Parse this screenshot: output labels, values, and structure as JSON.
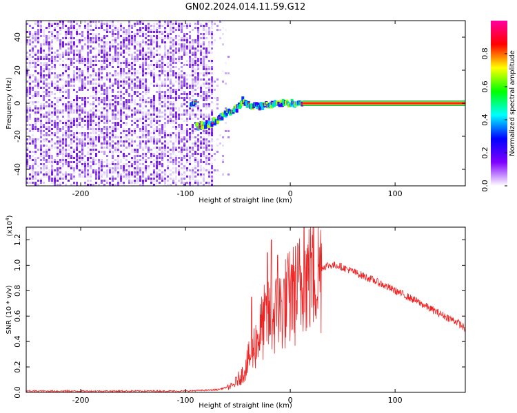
{
  "title": "GN02.2024.014.11.59.G12",
  "chart_data": [
    {
      "type": "heatmap",
      "title": "GN02.2024.014.11.59.G12",
      "xlabel": "Height of straight line (km)",
      "ylabel": "Frequency (Hz)",
      "xlim": [
        -252,
        167
      ],
      "ylim": [
        -50,
        50
      ],
      "x_ticks": [
        -200,
        -100,
        0,
        100
      ],
      "x_tick_labels": [
        "-200",
        "-100",
        "0",
        "100"
      ],
      "y_ticks": [
        -40,
        -20,
        0,
        20,
        40
      ],
      "y_tick_labels": [
        "-40",
        "-20",
        "0",
        "20",
        "40"
      ],
      "colorbar": {
        "label": "Normalized spectral amplitude",
        "range": [
          0,
          1
        ],
        "ticks": [
          0.0,
          0.2,
          0.4,
          0.6,
          0.8
        ],
        "tick_labels": [
          "0.0",
          "0.2",
          "0.4",
          "0.6",
          "0.8"
        ],
        "colors": [
          "#ffffff",
          "#7f00ff",
          "#0000ff",
          "#00ffff",
          "#00ff00",
          "#ffff00",
          "#ff0000",
          "#ff00a0"
        ]
      },
      "features": {
        "noise_region_x": [
          -252,
          -75
        ],
        "signal_track": [
          {
            "x": -90,
            "y": -14
          },
          {
            "x": -75,
            "y": -12
          },
          {
            "x": -70,
            "y": -10
          },
          {
            "x": -60,
            "y": -6
          },
          {
            "x": -50,
            "y": -3
          },
          {
            "x": -45,
            "y": 2
          },
          {
            "x": -40,
            "y": -1
          },
          {
            "x": -30,
            "y": -2
          },
          {
            "x": -20,
            "y": -1
          },
          {
            "x": -10,
            "y": 0
          },
          {
            "x": 0,
            "y": 0
          },
          {
            "x": 10,
            "y": 0
          },
          {
            "x": 167,
            "y": 0
          }
        ],
        "steady_line_start_x": 12,
        "grid": false
      }
    },
    {
      "type": "line",
      "xlabel": "Height of straight line (km)",
      "ylabel": "SNR (10 * v/v)",
      "y_scale_note": "(x10",
      "y_scale_exponent": "4",
      "xlim": [
        -252,
        167
      ],
      "ylim": [
        0,
        1.3
      ],
      "x_ticks": [
        -200,
        -100,
        0,
        100
      ],
      "x_tick_labels": [
        "-200",
        "-100",
        "0",
        "100"
      ],
      "y_ticks": [
        0.0,
        0.2,
        0.4,
        0.6,
        0.8,
        1.0,
        1.2
      ],
      "y_tick_labels": [
        "0.0",
        "0.2",
        "0.4",
        "0.6",
        "0.8",
        "1.0",
        "1.2"
      ],
      "grid": false,
      "series": [
        {
          "color": "#ee2222",
          "x": [
            -252,
            -200,
            -150,
            -100,
            -70,
            -55,
            -45,
            -35,
            -25,
            -15,
            -5,
            5,
            15,
            25,
            35,
            45,
            60,
            80,
            100,
            120,
            140,
            160,
            167
          ],
          "values": [
            0.01,
            0.01,
            0.01,
            0.01,
            0.02,
            0.05,
            0.15,
            0.35,
            0.55,
            0.6,
            0.7,
            0.78,
            0.9,
            0.96,
            1.0,
            1.0,
            0.95,
            0.88,
            0.8,
            0.72,
            0.63,
            0.55,
            0.5
          ],
          "peaks": [
            {
              "x": -37,
              "y": 0.75
            },
            {
              "x": -22,
              "y": 1.1
            },
            {
              "x": -18,
              "y": 1.2
            },
            {
              "x": -12,
              "y": 1.08
            },
            {
              "x": 2,
              "y": 1.0
            },
            {
              "x": 13,
              "y": 1.3
            },
            {
              "x": 20,
              "y": 1.1
            }
          ]
        }
      ]
    }
  ]
}
